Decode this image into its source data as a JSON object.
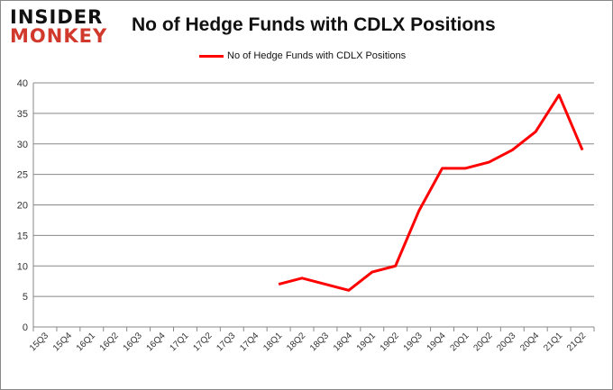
{
  "logo": {
    "line1": "INSIDER",
    "line2": "MONKEY"
  },
  "chart_data": {
    "type": "line",
    "title": "No of Hedge Funds with CDLX Positions",
    "xlabel": "",
    "ylabel": "",
    "ylim": [
      0,
      40
    ],
    "yticks": [
      0,
      5,
      10,
      15,
      20,
      25,
      30,
      35,
      40
    ],
    "legend": "top-center",
    "grid": true,
    "categories": [
      "15Q3",
      "15Q4",
      "16Q1",
      "16Q2",
      "16Q3",
      "16Q4",
      "17Q1",
      "17Q2",
      "17Q3",
      "17Q4",
      "18Q1",
      "18Q2",
      "18Q3",
      "18Q4",
      "19Q1",
      "19Q2",
      "19Q3",
      "19Q4",
      "20Q1",
      "20Q2",
      "20Q3",
      "20Q4",
      "21Q1",
      "21Q2"
    ],
    "series": [
      {
        "name": "No of Hedge Funds with CDLX Positions",
        "color": "#ff0000",
        "values": [
          null,
          null,
          null,
          null,
          null,
          null,
          null,
          null,
          null,
          null,
          7,
          8,
          7,
          6,
          9,
          10,
          19,
          26,
          26,
          27,
          29,
          32,
          38,
          29
        ]
      }
    ]
  }
}
